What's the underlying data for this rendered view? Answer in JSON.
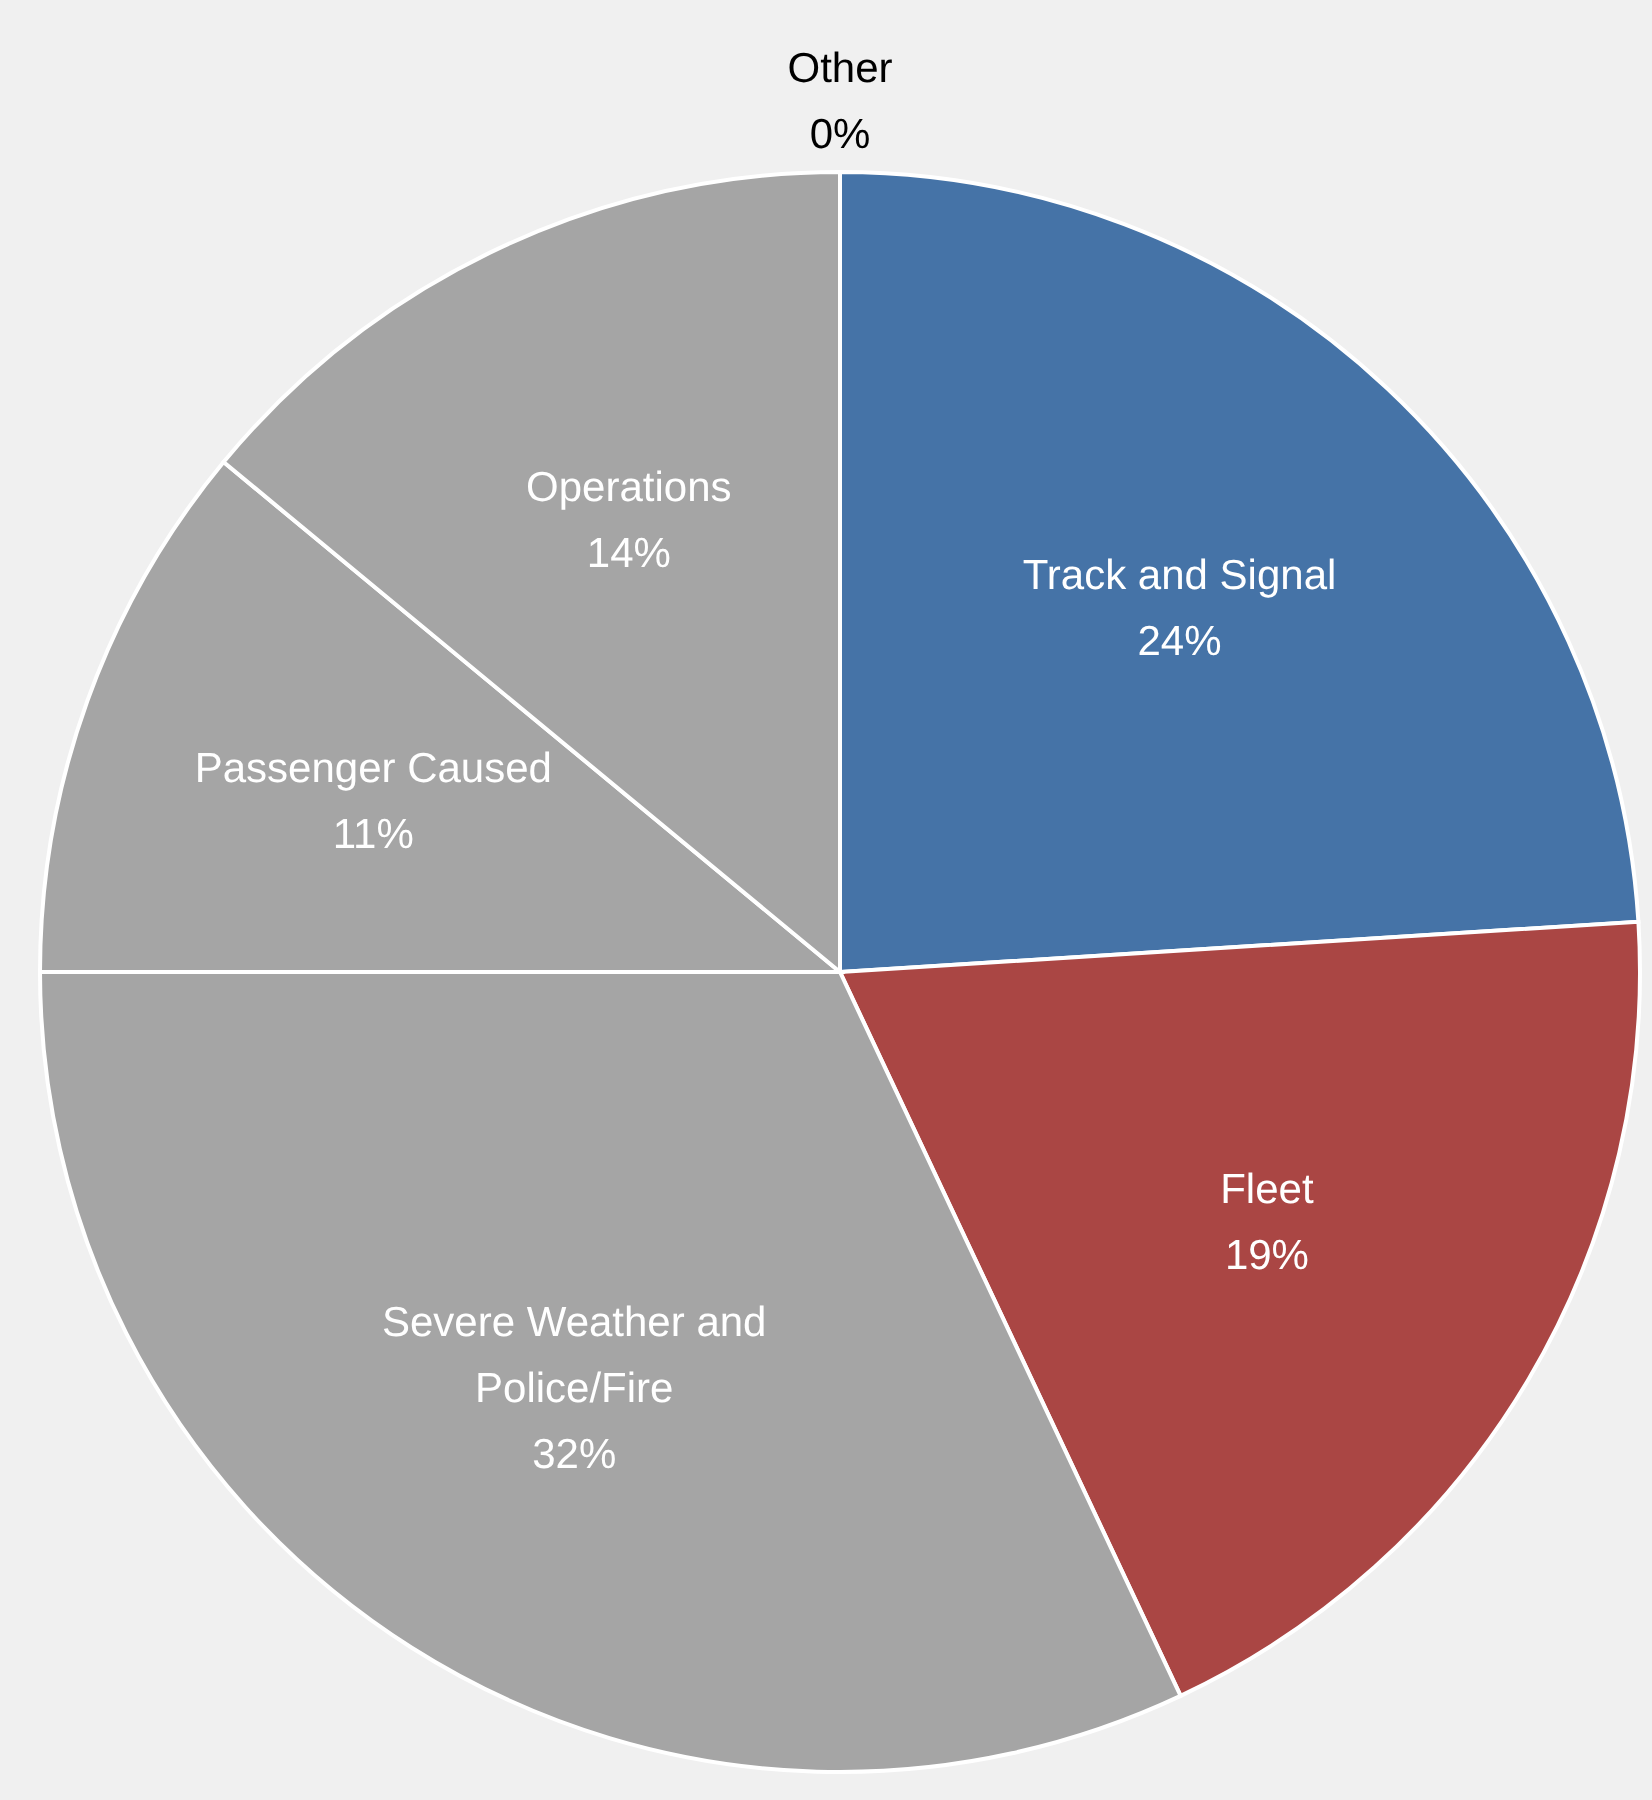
{
  "chart_data": {
    "type": "pie",
    "categories": [
      "Track and Signal",
      "Fleet",
      "Severe Weather and Police/Fire",
      "Passenger Caused",
      "Operations",
      "Other"
    ],
    "values": [
      24,
      19,
      32,
      11,
      14,
      0
    ],
    "value_labels": [
      "24%",
      "19%",
      "32%",
      "11%",
      "14%",
      "0%"
    ],
    "colors": [
      "#4573a7",
      "#aa4644",
      "#a5a5a5",
      "#a5a5a5",
      "#a5a5a5",
      "#7f7f7f"
    ]
  }
}
